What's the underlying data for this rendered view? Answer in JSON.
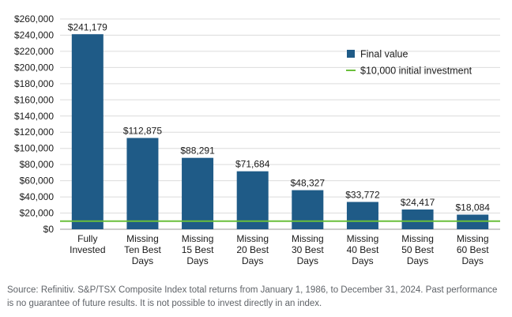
{
  "chart_data": {
    "type": "bar",
    "categories": [
      [
        "Fully",
        "Invested"
      ],
      [
        "Missing",
        "Ten Best",
        "Days"
      ],
      [
        "Missing",
        "15 Best",
        "Days"
      ],
      [
        "Missing",
        "20 Best",
        "Days"
      ],
      [
        "Missing",
        "30 Best",
        "Days"
      ],
      [
        "Missing",
        "40 Best",
        "Days"
      ],
      [
        "Missing",
        "50 Best",
        "Days"
      ],
      [
        "Missing",
        "60 Best",
        "Days"
      ]
    ],
    "values": [
      241179,
      112875,
      88291,
      71684,
      48327,
      33772,
      24417,
      18084
    ],
    "value_labels": [
      "$241,179",
      "$112,875",
      "$88,291",
      "$71,684",
      "$48,327",
      "$33,772",
      "$24,417",
      "$18,084"
    ],
    "series_name": "Final value",
    "reference_line": {
      "name": "$10,000 initial investment",
      "value": 10000,
      "color": "#6abf3b"
    },
    "bar_color": "#1f5b87",
    "ylim": [
      0,
      260000
    ],
    "yticks": [
      0,
      20000,
      40000,
      60000,
      80000,
      100000,
      120000,
      140000,
      160000,
      180000,
      200000,
      220000,
      240000,
      260000
    ],
    "ytick_labels": [
      "$0",
      "$20,000",
      "$40,000",
      "$60,000",
      "$80,000",
      "$100,000",
      "$120,000",
      "$140,000",
      "$160,000",
      "$180,000",
      "$200,000",
      "$220,000",
      "$240,000",
      "$260,000"
    ],
    "grid": true,
    "legend_position": "top-right"
  },
  "source_note": "Source: Refinitiv. S&P/TSX Composite Index total returns from January 1, 1986, to December 31, 2024. Past performance is no guarantee of future results. It is not possible to invest directly in an index."
}
